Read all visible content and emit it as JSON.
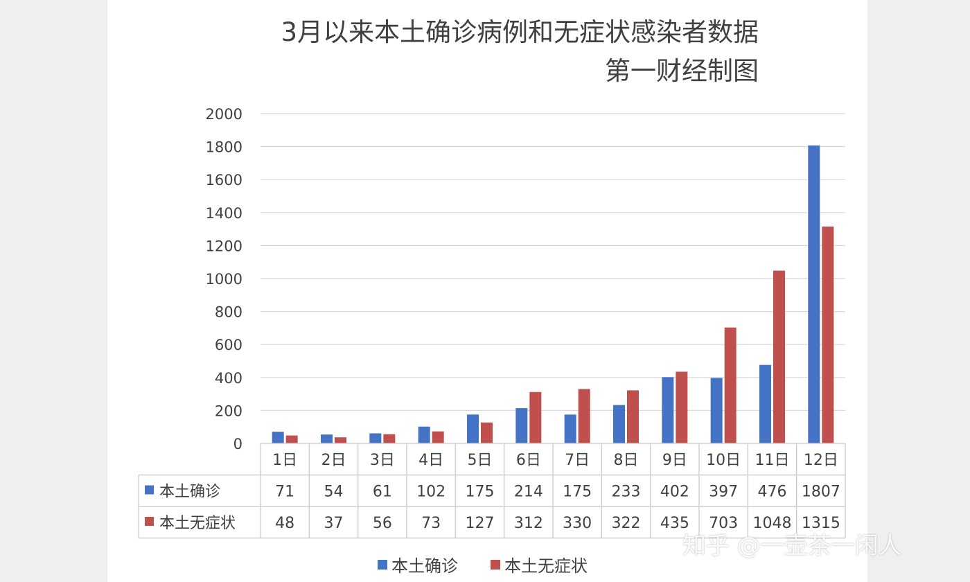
{
  "chart_data": {
    "type": "bar",
    "title": "3月以来本土确诊病例和无症状感染者数据",
    "subtitle": "第一财经制图",
    "categories": [
      "1日",
      "2日",
      "3日",
      "4日",
      "5日",
      "6日",
      "7日",
      "8日",
      "9日",
      "10日",
      "11日",
      "12日"
    ],
    "series": [
      {
        "name": "本土确诊",
        "color": "#4472c4",
        "values": [
          71,
          54,
          61,
          102,
          175,
          214,
          175,
          233,
          402,
          397,
          476,
          1807
        ]
      },
      {
        "name": "本土无症状",
        "color": "#c0504d",
        "values": [
          48,
          37,
          56,
          73,
          127,
          312,
          330,
          322,
          435,
          703,
          1048,
          1315
        ]
      }
    ],
    "ylim": [
      0,
      2000
    ],
    "yticks": [
      0,
      200,
      400,
      600,
      800,
      1000,
      1200,
      1400,
      1600,
      1800,
      2000
    ],
    "grid": true,
    "legend_position": "bottom",
    "data_table": true
  },
  "watermark": "知乎 @一壶茶一闲人"
}
